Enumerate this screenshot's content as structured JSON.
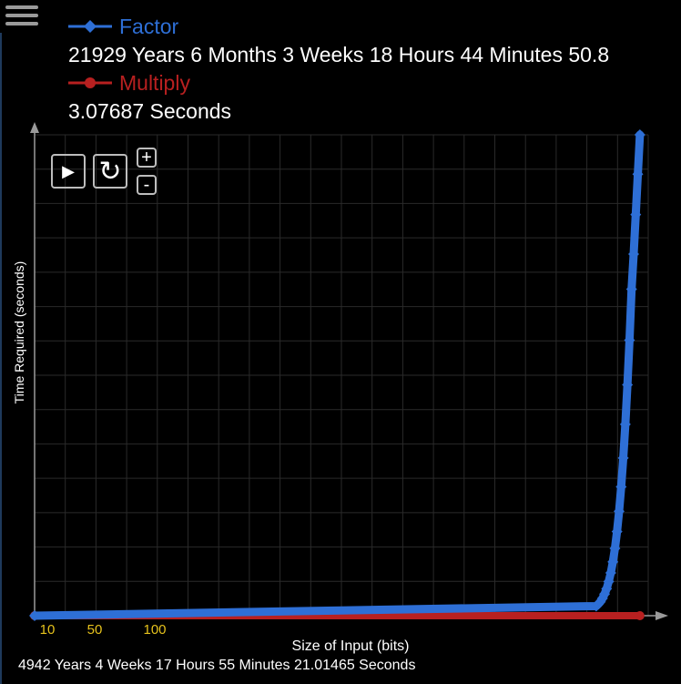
{
  "menu": {
    "icon": "hamburger-menu-icon"
  },
  "legend": [
    {
      "name": "Factor",
      "value": "21929 Years 6 Months 3 Weeks 18 Hours 44 Minutes 50.8",
      "color": "#2e6fd6",
      "marker": "diamond"
    },
    {
      "name": "Multiply",
      "value": "3.07687 Seconds",
      "color": "#b82020",
      "marker": "circle"
    }
  ],
  "controls": {
    "play_icon": "play-icon",
    "reset_icon": "reset-icon",
    "zoom_in_label": "+",
    "zoom_out_label": "-"
  },
  "footer_text": "4942 Years 4 Weeks 17 Hours 55 Minutes 21.01465 Seconds",
  "chart_data": {
    "type": "line",
    "xlabel": "Size of Input (bits)",
    "ylabel": "Time Required (seconds)",
    "x_tick_labels": [
      "10",
      "50",
      "100"
    ],
    "x_tick_values": [
      10,
      50,
      100
    ],
    "xlim": [
      10,
      600
    ],
    "ylim": [
      0,
      1
    ],
    "grid": true,
    "legend_position": "top-left",
    "series": [
      {
        "name": "Factor",
        "color": "#2e6fd6",
        "marker": "diamond",
        "x": [
          10,
          550,
          552,
          554,
          556,
          558,
          560,
          562,
          564,
          566,
          568,
          570,
          572,
          574,
          576,
          578,
          580,
          582,
          584,
          586,
          588,
          590,
          592
        ],
        "y": [
          0,
          0.02,
          0.024,
          0.029,
          0.036,
          0.045,
          0.056,
          0.071,
          0.089,
          0.112,
          0.14,
          0.175,
          0.217,
          0.268,
          0.328,
          0.398,
          0.48,
          0.573,
          0.679,
          0.752,
          0.834,
          0.918,
          1.0
        ]
      },
      {
        "name": "Multiply",
        "color": "#b82020",
        "marker": "circle",
        "x": [
          10,
          592
        ],
        "y": [
          0,
          0
        ]
      }
    ]
  }
}
